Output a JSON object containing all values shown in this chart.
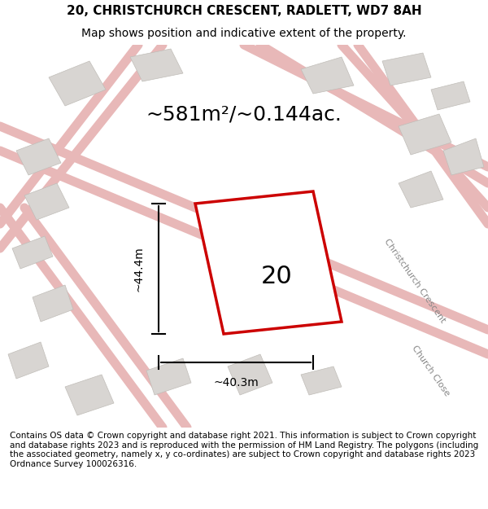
{
  "title_line1": "20, CHRISTCHURCH CRESCENT, RADLETT, WD7 8AH",
  "title_line2": "Map shows position and indicative extent of the property.",
  "area_text": "~581m²/~0.144ac.",
  "label_number": "20",
  "dim_height": "~44.4m",
  "dim_width": "~40.3m",
  "footer": "Contains OS data © Crown copyright and database right 2021. This information is subject to Crown copyright and database rights 2023 and is reproduced with the permission of HM Land Registry. The polygons (including the associated geometry, namely x, y co-ordinates) are subject to Crown copyright and database rights 2023 Ordnance Survey 100026316.",
  "bg_color": "#f5f2f0",
  "map_bg": "#f0eeec",
  "plot_color": "#ffffff",
  "plot_edge_color": "#cc0000",
  "road_color": "#e8b8b8",
  "road_fill": "#f5e8e8",
  "building_color": "#d8d5d2",
  "street_label1": "Christchurch Crescent",
  "street_label2": "Church Close",
  "title_fontsize": 11,
  "subtitle_fontsize": 10,
  "area_fontsize": 18,
  "label_fontsize": 22,
  "footer_fontsize": 7.5
}
